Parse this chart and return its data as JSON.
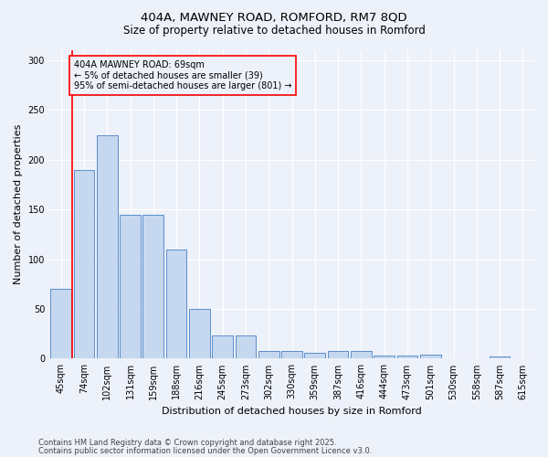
{
  "title1": "404A, MAWNEY ROAD, ROMFORD, RM7 8QD",
  "title2": "Size of property relative to detached houses in Romford",
  "xlabel": "Distribution of detached houses by size in Romford",
  "ylabel": "Number of detached properties",
  "categories": [
    "45sqm",
    "74sqm",
    "102sqm",
    "131sqm",
    "159sqm",
    "188sqm",
    "216sqm",
    "245sqm",
    "273sqm",
    "302sqm",
    "330sqm",
    "359sqm",
    "387sqm",
    "416sqm",
    "444sqm",
    "473sqm",
    "501sqm",
    "530sqm",
    "558sqm",
    "587sqm",
    "615sqm"
  ],
  "values": [
    70,
    190,
    225,
    145,
    145,
    110,
    50,
    23,
    23,
    8,
    8,
    6,
    8,
    8,
    3,
    3,
    4,
    0,
    0,
    2,
    0
  ],
  "bar_color": "#c5d8f0",
  "bar_edge_color": "#5b8fc9",
  "annotation_text": "404A MAWNEY ROAD: 69sqm\n← 5% of detached houses are smaller (39)\n95% of semi-detached houses are larger (801) →",
  "ylim": [
    0,
    310
  ],
  "yticks": [
    0,
    50,
    100,
    150,
    200,
    250,
    300
  ],
  "background_color": "#edf1fa",
  "red_line_index": 0.5,
  "footer1": "Contains HM Land Registry data © Crown copyright and database right 2025.",
  "footer2": "Contains public sector information licensed under the Open Government Licence v3.0."
}
